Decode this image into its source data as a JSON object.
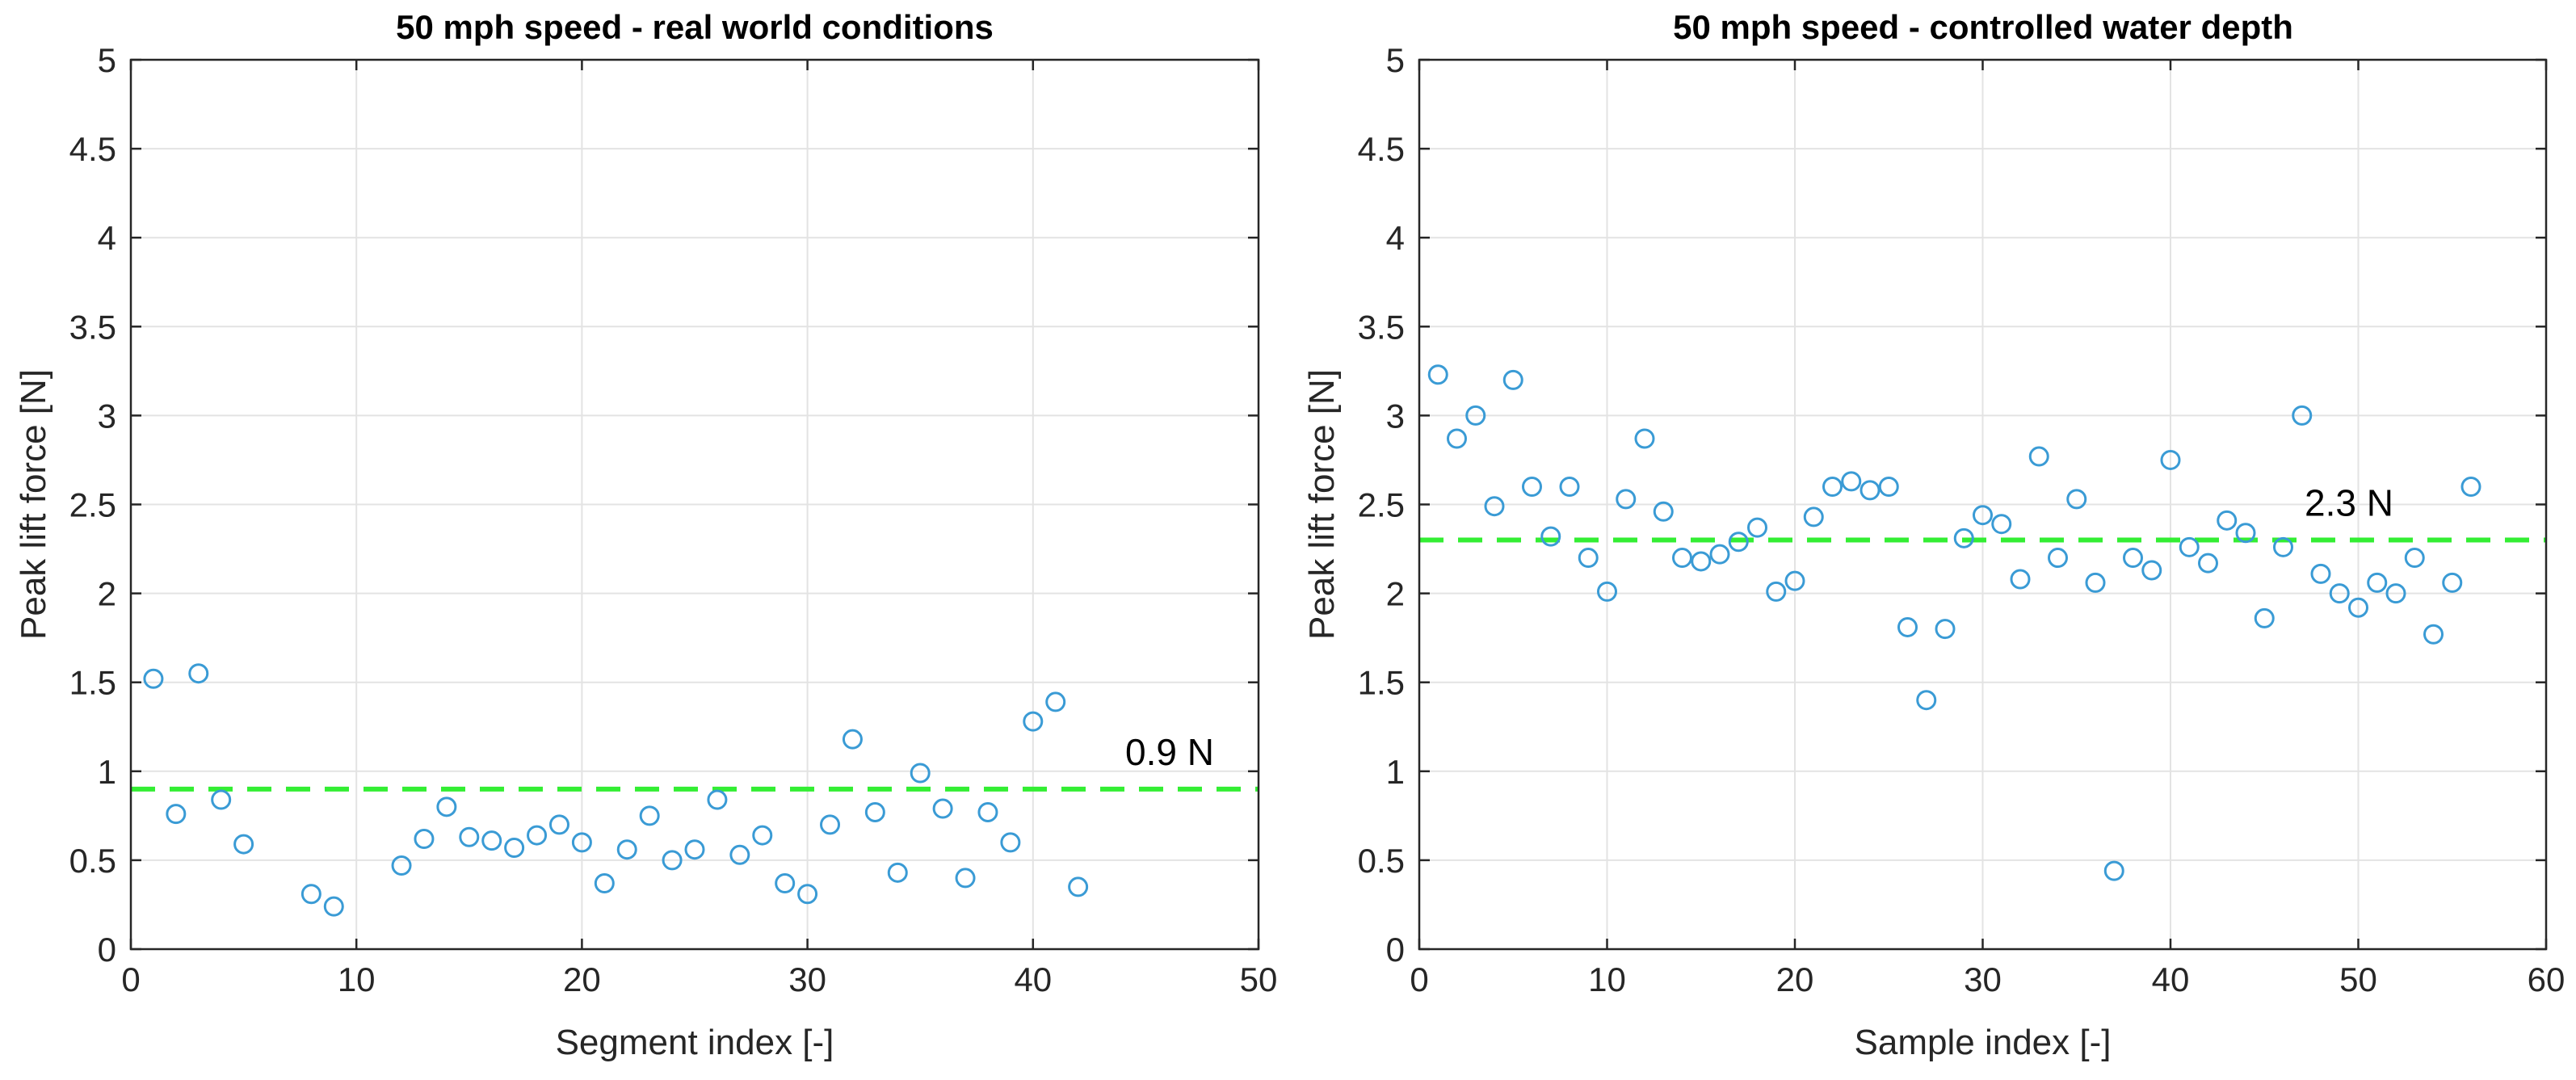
{
  "chart_data": [
    {
      "type": "scatter",
      "title": "50 mph speed - real world conditions",
      "xlabel": "Segment index [-]",
      "ylabel": "Peak lift force [N]",
      "xlim": [
        0,
        50
      ],
      "ylim": [
        0,
        5
      ],
      "xticks": [
        0,
        10,
        20,
        30,
        40,
        50
      ],
      "yticks": [
        0,
        0.5,
        1,
        1.5,
        2,
        2.5,
        3,
        3.5,
        4,
        4.5,
        5
      ],
      "grid": true,
      "marker_color": "#3a9bd5",
      "reference_line": {
        "value": 0.9,
        "label": "0.9 N",
        "color": "#33ee33"
      },
      "points": [
        [
          1,
          1.52
        ],
        [
          2,
          0.76
        ],
        [
          3,
          1.55
        ],
        [
          4,
          0.84
        ],
        [
          5,
          0.59
        ],
        [
          8,
          0.31
        ],
        [
          9,
          0.24
        ],
        [
          12,
          0.47
        ],
        [
          13,
          0.62
        ],
        [
          14,
          0.8
        ],
        [
          15,
          0.63
        ],
        [
          16,
          0.61
        ],
        [
          17,
          0.57
        ],
        [
          18,
          0.64
        ],
        [
          19,
          0.7
        ],
        [
          20,
          0.6
        ],
        [
          21,
          0.37
        ],
        [
          22,
          0.56
        ],
        [
          23,
          0.75
        ],
        [
          24,
          0.5
        ],
        [
          25,
          0.56
        ],
        [
          26,
          0.84
        ],
        [
          27,
          0.53
        ],
        [
          28,
          0.64
        ],
        [
          29,
          0.37
        ],
        [
          30,
          0.31
        ],
        [
          31,
          0.7
        ],
        [
          32,
          1.18
        ],
        [
          33,
          0.77
        ],
        [
          34,
          0.43
        ],
        [
          35,
          0.99
        ],
        [
          36,
          0.79
        ],
        [
          37,
          0.4
        ],
        [
          38,
          0.77
        ],
        [
          39,
          0.6
        ],
        [
          40,
          1.28
        ],
        [
          41,
          1.39
        ],
        [
          42,
          0.35
        ]
      ]
    },
    {
      "type": "scatter",
      "title": "50 mph speed - controlled water depth",
      "xlabel": "Sample index [-]",
      "ylabel": "Peak lift force [N]",
      "xlim": [
        0,
        60
      ],
      "ylim": [
        0,
        5
      ],
      "xticks": [
        0,
        10,
        20,
        30,
        40,
        50,
        60
      ],
      "yticks": [
        0,
        0.5,
        1,
        1.5,
        2,
        2.5,
        3,
        3.5,
        4,
        4.5,
        5
      ],
      "grid": true,
      "marker_color": "#3a9bd5",
      "reference_line": {
        "value": 2.3,
        "label": "2.3 N",
        "color": "#33ee33"
      },
      "points": [
        [
          1,
          3.23
        ],
        [
          2,
          2.87
        ],
        [
          3,
          3.0
        ],
        [
          4,
          2.49
        ],
        [
          5,
          3.2
        ],
        [
          6,
          2.6
        ],
        [
          7,
          2.32
        ],
        [
          8,
          2.6
        ],
        [
          9,
          2.2
        ],
        [
          10,
          2.01
        ],
        [
          11,
          2.53
        ],
        [
          12,
          2.87
        ],
        [
          13,
          2.46
        ],
        [
          14,
          2.2
        ],
        [
          15,
          2.18
        ],
        [
          16,
          2.22
        ],
        [
          17,
          2.29
        ],
        [
          18,
          2.37
        ],
        [
          19,
          2.01
        ],
        [
          20,
          2.07
        ],
        [
          21,
          2.43
        ],
        [
          22,
          2.6
        ],
        [
          23,
          2.63
        ],
        [
          24,
          2.58
        ],
        [
          25,
          2.6
        ],
        [
          26,
          1.81
        ],
        [
          27,
          1.4
        ],
        [
          28,
          1.8
        ],
        [
          29,
          2.31
        ],
        [
          30,
          2.44
        ],
        [
          31,
          2.39
        ],
        [
          32,
          2.08
        ],
        [
          33,
          2.77
        ],
        [
          34,
          2.2
        ],
        [
          35,
          2.53
        ],
        [
          36,
          2.06
        ],
        [
          37,
          0.44
        ],
        [
          38,
          2.2
        ],
        [
          39,
          2.13
        ],
        [
          40,
          2.75
        ],
        [
          41,
          2.26
        ],
        [
          42,
          2.17
        ],
        [
          43,
          2.41
        ],
        [
          44,
          2.34
        ],
        [
          45,
          1.86
        ],
        [
          46,
          2.26
        ],
        [
          47,
          3.0
        ],
        [
          48,
          2.11
        ],
        [
          49,
          2.0
        ],
        [
          50,
          1.92
        ],
        [
          51,
          2.06
        ],
        [
          52,
          2.0
        ],
        [
          53,
          2.2
        ],
        [
          54,
          1.77
        ],
        [
          55,
          2.06
        ],
        [
          56,
          2.6
        ]
      ]
    }
  ]
}
